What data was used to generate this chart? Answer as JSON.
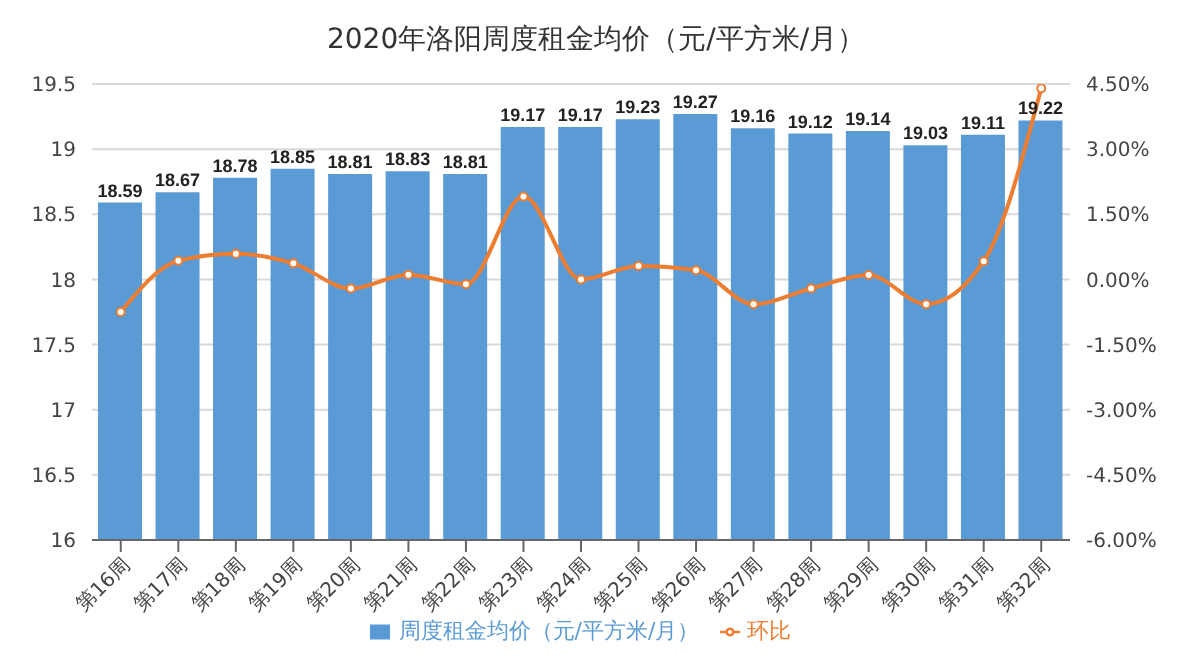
{
  "chart_data": {
    "type": "bar",
    "title": "2020年洛阳周度租金均价（元/平方米/月）",
    "categories": [
      "第16周",
      "第17周",
      "第18周",
      "第19周",
      "第20周",
      "第21周",
      "第22周",
      "第23周",
      "第24周",
      "第25周",
      "第26周",
      "第27周",
      "第28周",
      "第29周",
      "第30周",
      "第31周",
      "第32周"
    ],
    "series": [
      {
        "name": "周度租金均价（元/平方米/月）",
        "color": "#5b9bd5",
        "values": [
          18.59,
          18.67,
          18.78,
          18.85,
          18.81,
          18.83,
          18.81,
          19.17,
          19.17,
          19.23,
          19.27,
          19.16,
          19.12,
          19.14,
          19.03,
          19.11,
          19.22
        ],
        "value_labels": [
          "18.59",
          "18.67",
          "18.78",
          "18.85",
          "18.81",
          "18.83",
          "18.81",
          "19.17",
          "19.17",
          "19.23",
          "19.27",
          "19.16",
          "19.12",
          "19.14",
          "19.03",
          "19.11",
          "19.22"
        ]
      },
      {
        "name": "环比",
        "type": "line",
        "axis": "y2",
        "color": "#ed7d31",
        "marker": "circle",
        "values": [
          -0.75,
          0.43,
          0.59,
          0.37,
          -0.21,
          0.11,
          -0.11,
          1.91,
          0.0,
          0.31,
          0.21,
          -0.57,
          -0.21,
          0.1,
          -0.57,
          0.42,
          4.4
        ]
      }
    ],
    "ylim": [
      16,
      19.5
    ],
    "yticks": [
      16,
      16.5,
      17,
      17.5,
      18,
      18.5,
      19,
      19.5
    ],
    "y2lim": [
      -6,
      4.5
    ],
    "y2ticks": [
      {
        "value": -6,
        "label": "-6.00%"
      },
      {
        "value": -4.5,
        "label": "-4.50%"
      },
      {
        "value": -3,
        "label": "-3.00%"
      },
      {
        "value": -1.5,
        "label": "-1.50%"
      },
      {
        "value": 0,
        "label": "0.00%"
      },
      {
        "value": 1.5,
        "label": "1.50%"
      },
      {
        "value": 3,
        "label": "3.00%"
      },
      {
        "value": 4.5,
        "label": "4.50%"
      }
    ],
    "grid": "y",
    "legend": "bottom"
  }
}
